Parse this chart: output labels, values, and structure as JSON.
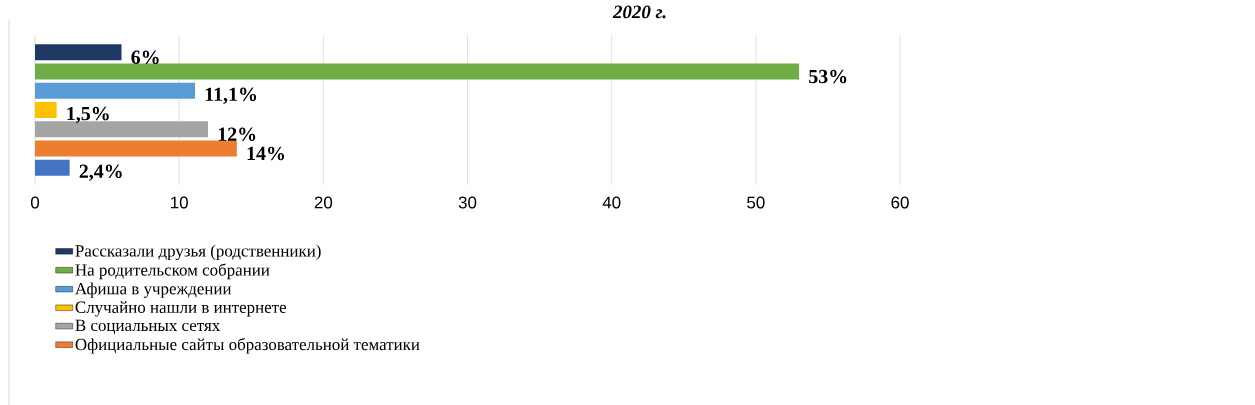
{
  "chart_data": {
    "type": "bar",
    "orientation": "horizontal",
    "title": "2020 г.",
    "categories": [
      null
    ],
    "xlim": [
      0,
      60
    ],
    "xticks": [
      0,
      10,
      20,
      30,
      40,
      50,
      60
    ],
    "grid": "x",
    "legend": "bottom",
    "series": [
      {
        "name": "Рассказали друзья (родственники)",
        "color": "#203864",
        "values": [
          6
        ],
        "value_labels": [
          "6%"
        ]
      },
      {
        "name": "На родительском собрании",
        "color": "#70ad47",
        "values": [
          53
        ],
        "value_labels": [
          "53%"
        ]
      },
      {
        "name": "Афиша в учреждении",
        "color": "#5b9bd5",
        "values": [
          11.1
        ],
        "value_labels": [
          "11,1%"
        ]
      },
      {
        "name": "Случайно нашли в интернете",
        "color": "#ffc000",
        "values": [
          1.5
        ],
        "value_labels": [
          "1,5%"
        ]
      },
      {
        "name": "В социальных сетях",
        "color": "#a5a5a5",
        "values": [
          12
        ],
        "value_labels": [
          "12%"
        ]
      },
      {
        "name": "Официальные сайты образовательной тематики",
        "color": "#ed7d31",
        "values": [
          14
        ],
        "value_labels": [
          "14%"
        ]
      },
      {
        "color": "#4472c4",
        "values": [
          2.4
        ],
        "value_labels": [
          "2,4%"
        ]
      }
    ]
  }
}
